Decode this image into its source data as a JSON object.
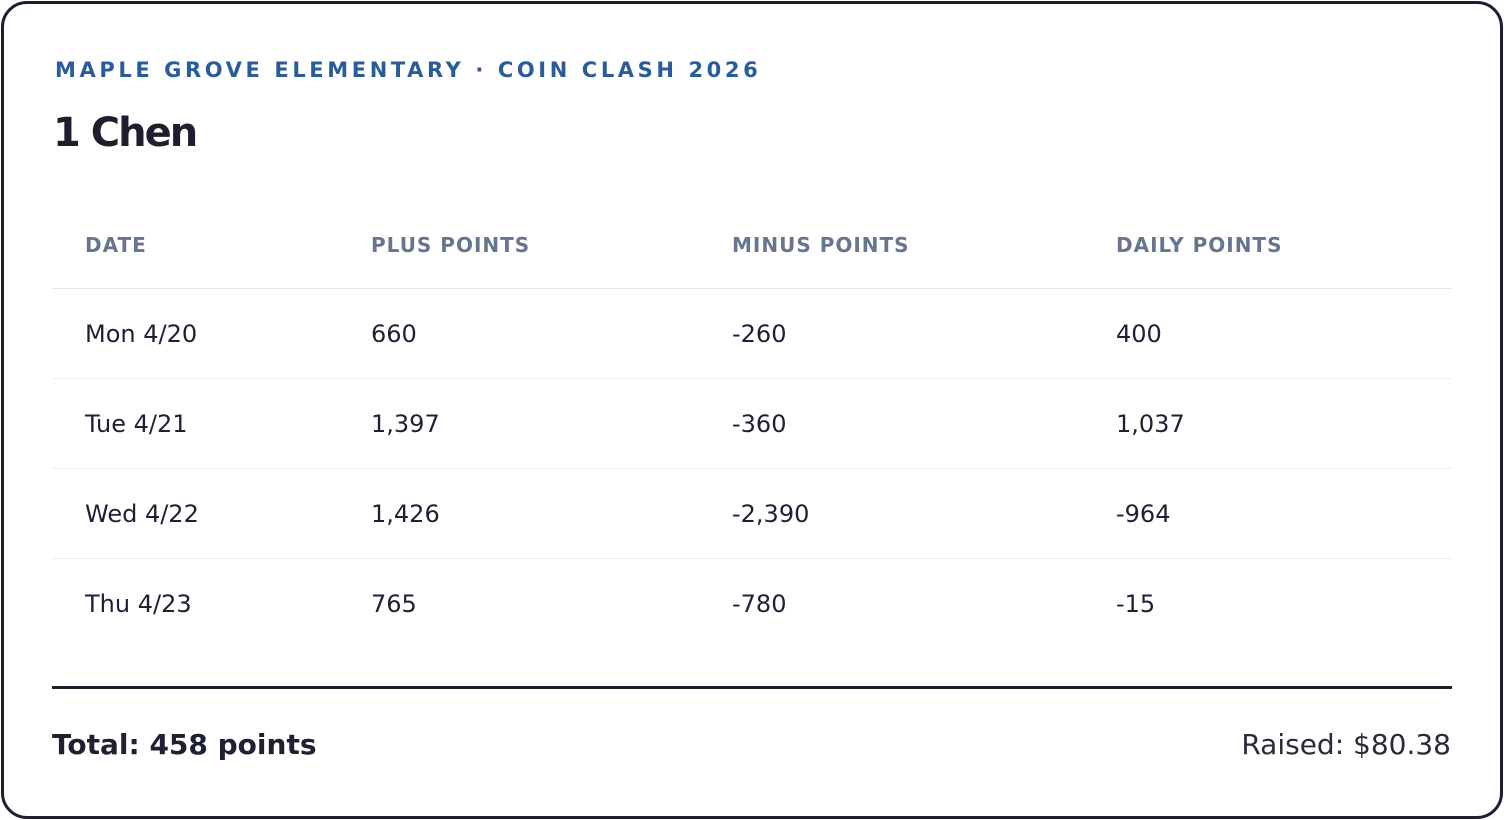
{
  "header": {
    "eyebrow": "MAPLE GROVE ELEMENTARY · COIN CLASH 2026",
    "title": "1 Chen"
  },
  "table": {
    "columns": [
      "DATE",
      "PLUS POINTS",
      "MINUS POINTS",
      "DAILY POINTS"
    ],
    "rows": [
      [
        "Mon 4/20",
        "660",
        "-260",
        "400"
      ],
      [
        "Tue 4/21",
        "1,397",
        "-360",
        "1,037"
      ],
      [
        "Wed 4/22",
        "1,426",
        "-2,390",
        "-964"
      ],
      [
        "Thu 4/23",
        "765",
        "-780",
        "-15"
      ]
    ]
  },
  "footer": {
    "total": "Total: 458 points",
    "raised": "Raised: $80.38"
  }
}
